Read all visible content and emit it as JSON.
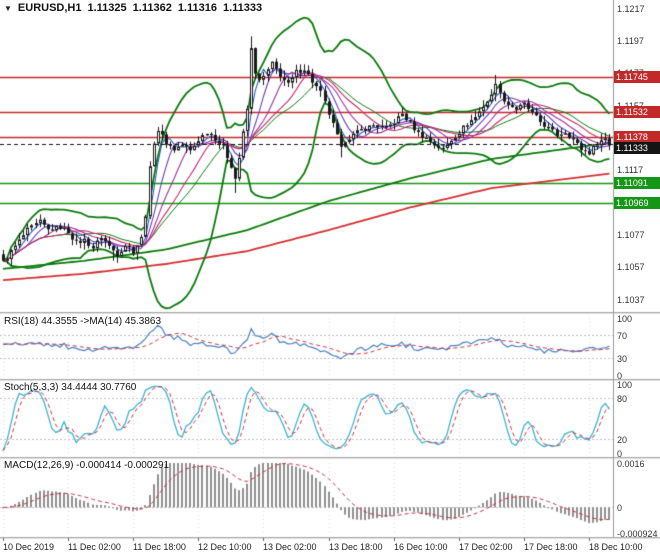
{
  "header": {
    "dropdown_glyph": "▼",
    "symbol": "EURUSD,H1",
    "open": "1.11325",
    "high": "1.11362",
    "low": "1.11316",
    "close": "1.11333"
  },
  "time_axis": {
    "labels": [
      "10 Dec 2019",
      "11 Dec 02:00",
      "11 Dec 18:00",
      "12 Dec 10:00",
      "13 Dec 02:00",
      "13 Dec 18:00",
      "16 Dec 10:00",
      "17 Dec 02:00",
      "17 Dec 18:00",
      "18 Dec 10:00"
    ],
    "indices": [
      0,
      16,
      32,
      48,
      64,
      80,
      96,
      112,
      128,
      144
    ]
  },
  "price_axis": {
    "ticks": [
      "1.1217",
      "1.1197",
      "1.1177",
      "1.1157",
      "1.1137",
      "1.1117",
      "1.1097",
      "1.1077",
      "1.1057",
      "1.1037"
    ],
    "tick_values": [
      1.1217,
      1.1197,
      1.1177,
      1.1157,
      1.1137,
      1.1117,
      1.1097,
      1.1077,
      1.1057,
      1.1037
    ]
  },
  "chart_data": {
    "type": "candlestick",
    "symbol": "EURUSD",
    "timeframe": "H1",
    "num_candles": 150,
    "price_range": {
      "top": 1.122,
      "bottom": 1.1033
    },
    "close_anchors": [
      [
        0,
        1.106
      ],
      [
        3,
        1.107
      ],
      [
        6,
        1.108
      ],
      [
        9,
        1.1085
      ],
      [
        11,
        1.108
      ],
      [
        14,
        1.1082
      ],
      [
        16,
        1.1079
      ],
      [
        18,
        1.1072
      ],
      [
        20,
        1.1074
      ],
      [
        22,
        1.1069
      ],
      [
        24,
        1.1076
      ],
      [
        26,
        1.107
      ],
      [
        28,
        1.1065
      ],
      [
        30,
        1.1071
      ],
      [
        32,
        1.1067
      ],
      [
        34,
        1.1075
      ],
      [
        35,
        1.109
      ],
      [
        36,
        1.1118
      ],
      [
        37,
        1.1135
      ],
      [
        38,
        1.1142
      ],
      [
        40,
        1.1134
      ],
      [
        42,
        1.113
      ],
      [
        44,
        1.1133
      ],
      [
        46,
        1.1129
      ],
      [
        48,
        1.1136
      ],
      [
        50,
        1.1141
      ],
      [
        52,
        1.1137
      ],
      [
        54,
        1.1131
      ],
      [
        56,
        1.112
      ],
      [
        57,
        1.1112
      ],
      [
        58,
        1.1125
      ],
      [
        59,
        1.114
      ],
      [
        60,
        1.1155
      ],
      [
        61,
        1.1192
      ],
      [
        62,
        1.1178
      ],
      [
        63,
        1.1172
      ],
      [
        64,
        1.1175
      ],
      [
        66,
        1.1183
      ],
      [
        68,
        1.1176
      ],
      [
        70,
        1.117
      ],
      [
        72,
        1.1178
      ],
      [
        74,
        1.118
      ],
      [
        76,
        1.1172
      ],
      [
        78,
        1.1165
      ],
      [
        80,
        1.1152
      ],
      [
        82,
        1.1138
      ],
      [
        83,
        1.113
      ],
      [
        84,
        1.1136
      ],
      [
        86,
        1.1139
      ],
      [
        88,
        1.1142
      ],
      [
        91,
        1.1145
      ],
      [
        94,
        1.1143
      ],
      [
        96,
        1.1147
      ],
      [
        98,
        1.1152
      ],
      [
        100,
        1.1146
      ],
      [
        102,
        1.114
      ],
      [
        104,
        1.1137
      ],
      [
        106,
        1.1133
      ],
      [
        108,
        1.113
      ],
      [
        110,
        1.1136
      ],
      [
        112,
        1.1141
      ],
      [
        114,
        1.1146
      ],
      [
        116,
        1.115
      ],
      [
        118,
        1.1157
      ],
      [
        120,
        1.1163
      ],
      [
        121,
        1.1172
      ],
      [
        122,
        1.1164
      ],
      [
        124,
        1.1158
      ],
      [
        126,
        1.1155
      ],
      [
        128,
        1.1158
      ],
      [
        130,
        1.1152
      ],
      [
        132,
        1.1147
      ],
      [
        134,
        1.1143
      ],
      [
        136,
        1.1139
      ],
      [
        138,
        1.1141
      ],
      [
        140,
        1.1136
      ],
      [
        142,
        1.113
      ],
      [
        144,
        1.1128
      ],
      [
        146,
        1.1134
      ],
      [
        148,
        1.1137
      ],
      [
        149,
        1.1133
      ]
    ],
    "wick_overrides": [
      {
        "i": 61,
        "high": 1.12
      },
      {
        "i": 57,
        "low": 1.1103
      },
      {
        "i": 121,
        "high": 1.1176
      },
      {
        "i": 27,
        "low": 1.1061
      },
      {
        "i": 83,
        "low": 1.1125
      }
    ],
    "levels": [
      {
        "price": 1.11745,
        "label": "1.11745",
        "color": "#c22a2a",
        "kind": "resistance"
      },
      {
        "price": 1.11532,
        "label": "1.11532",
        "color": "#c22a2a",
        "kind": "resistance"
      },
      {
        "price": 1.11378,
        "label": "1.11378",
        "color": "#c22a2a",
        "kind": "resistance"
      },
      {
        "price": 1.11333,
        "label": "1.11333",
        "color": "#141414",
        "kind": "current-price",
        "dashed": true
      },
      {
        "price": 1.11091,
        "label": "1.11091",
        "color": "#169616",
        "kind": "support"
      },
      {
        "price": 1.10969,
        "label": "1.10969",
        "color": "#169616",
        "kind": "support"
      }
    ],
    "overlays": {
      "bollinger": {
        "period": 20,
        "deviation": 2,
        "color": "#0c7a0c"
      },
      "ma_ribbon": [
        {
          "period": 4,
          "color": "#2f5fc4"
        },
        {
          "period": 7,
          "color": "#6a3fbf"
        },
        {
          "period": 11,
          "color": "#a032a0"
        },
        {
          "period": 16,
          "color": "#c42a6a"
        }
      ],
      "slow_ma_green": {
        "color": "#0c7a0c",
        "anchors": [
          [
            0,
            1.1056
          ],
          [
            20,
            1.1061
          ],
          [
            40,
            1.1068
          ],
          [
            60,
            1.108
          ],
          [
            80,
            1.1098
          ],
          [
            100,
            1.1112
          ],
          [
            120,
            1.1124
          ],
          [
            149,
            1.1134
          ]
        ]
      },
      "slow_ma_red": {
        "color": "#d43030",
        "anchors": [
          [
            0,
            1.1049
          ],
          [
            20,
            1.1053
          ],
          [
            40,
            1.1059
          ],
          [
            60,
            1.1067
          ],
          [
            80,
            1.108
          ],
          [
            100,
            1.1094
          ],
          [
            120,
            1.1106
          ],
          [
            149,
            1.1115
          ]
        ]
      }
    },
    "indicators": [
      {
        "id": "rsi",
        "label": "RSI(18) 44.3555 ->MA(14) 45.3863",
        "value": 44.3555,
        "ma_value": 45.3863,
        "period": 18,
        "ma_period": 14,
        "levels": [
          30,
          70
        ],
        "axis_labels": [
          "100",
          "70",
          "30",
          "0"
        ],
        "axis_values": [
          100,
          70,
          30,
          0
        ],
        "main_color": "#4a82c8",
        "signal_color": "#cc3344"
      },
      {
        "id": "stoch",
        "label": "Stoch(5,3,3) 34.4444 30.7760",
        "value": 34.4444,
        "signal_value": 30.776,
        "levels": [
          20,
          80
        ],
        "axis_labels": [
          "100",
          "80",
          "20",
          "0"
        ],
        "axis_values": [
          100,
          80,
          20,
          0
        ],
        "main_color": "#3fb3d4",
        "signal_color": "#cc3344"
      },
      {
        "id": "macd",
        "label": "MACD(12,26,9) -0.000414 -0.000291",
        "value": -0.000414,
        "signal_value": -0.000291,
        "axis_labels": [
          "0.0016",
          "0",
          "-0.000924"
        ],
        "axis_values": [
          0.0016,
          0,
          -0.000924
        ],
        "hist_color": "#909090",
        "signal_color": "#cc3344"
      }
    ]
  },
  "colors": {
    "background": "#ffffff",
    "grid": "#dcdcdc",
    "separator": "#a9a9a9",
    "candle_up": "#ffffff",
    "candle_down": "#1a1a1a",
    "candle_border": "#1a1a1a"
  }
}
